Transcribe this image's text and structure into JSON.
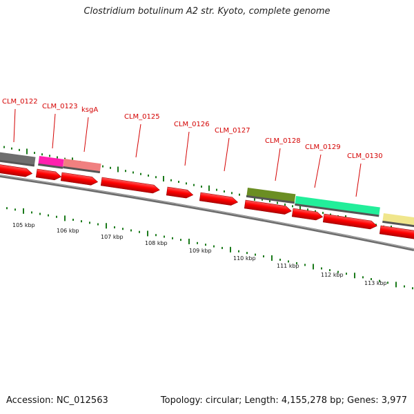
{
  "title": "Clostridium botulinum A2 str. Kyoto, complete genome",
  "footer": {
    "accession": "Accession: NC_012563",
    "stats": "Topology: circular; Length: 4,155,278 bp; Genes: 3,977"
  },
  "colors": {
    "gene_label": "#d40000",
    "cds_red": "#ff0000",
    "tick_green": "#1a7a1a",
    "backbone": "#7a7a7a"
  },
  "gene_labels": [
    "CLM_0122",
    "CLM_0123",
    "ksgA",
    "CLM_0125",
    "CLM_0126",
    "CLM_0127",
    "CLM_0128",
    "CLM_0129",
    "CLM_0130"
  ],
  "kbp_labels": [
    "105 kbp",
    "106 kbp",
    "107 kbp",
    "108 kbp",
    "109 kbp",
    "110 kbp",
    "111 kbp",
    "112 kbp",
    "113 kbp"
  ],
  "feature_colors": [
    "#6e6e6e",
    "#ff1fae",
    "#f08080",
    "#6b8e23",
    "#22ee9a",
    "#f0e68c"
  ]
}
